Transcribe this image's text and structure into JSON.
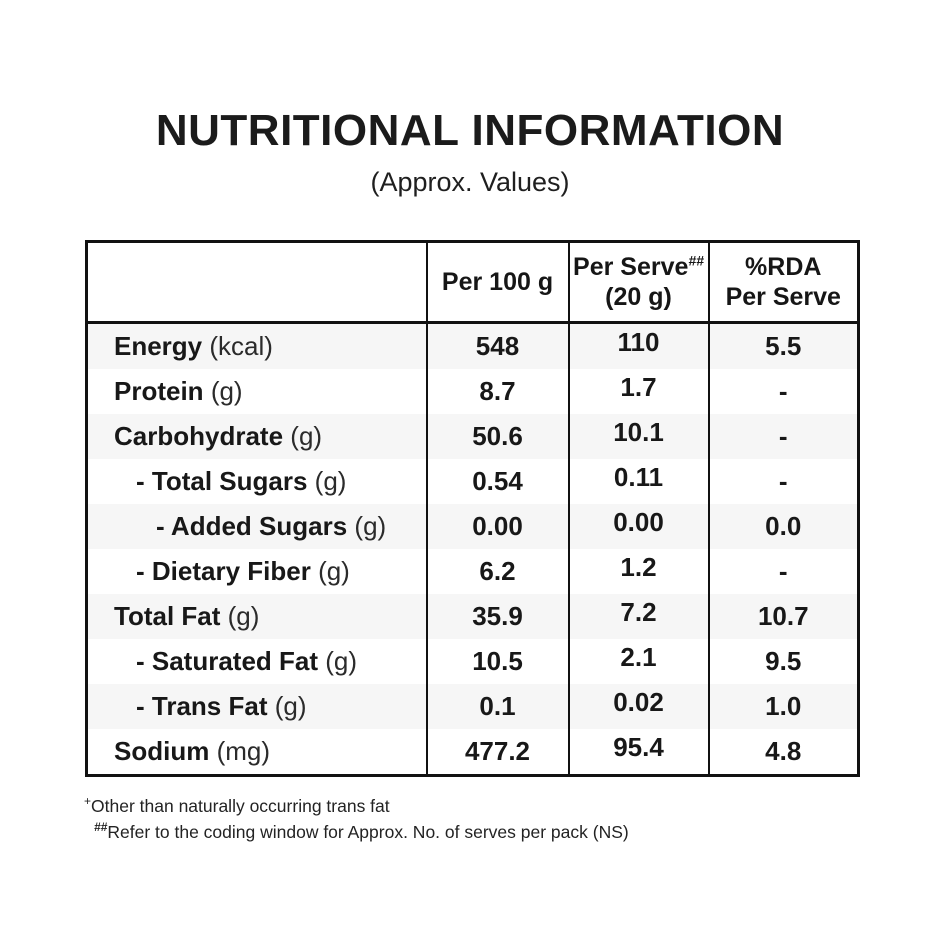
{
  "page": {
    "title": "NUTRITIONAL INFORMATION",
    "subtitle": "(Approx. Values)"
  },
  "table": {
    "stripe_color": "#f6f6f6",
    "border_color": "#111111",
    "columns": [
      {
        "label": ""
      },
      {
        "label": "Per 100 g"
      },
      {
        "label": "Per Serve",
        "sup": "##",
        "sub_label": "(20 g)"
      },
      {
        "label": "%RDA",
        "line2": "Per Serve"
      }
    ],
    "rows": [
      {
        "name": "Energy",
        "unit": "(kcal)",
        "indent": 0,
        "per100": "548",
        "perServe": "110",
        "rda": "5.5"
      },
      {
        "name": "Protein",
        "unit": "(g)",
        "indent": 0,
        "per100": "8.7",
        "perServe": "1.7",
        "rda": "-"
      },
      {
        "name": "Carbohydrate",
        "unit": "(g)",
        "indent": 0,
        "per100": "50.6",
        "perServe": "10.1",
        "rda": "-"
      },
      {
        "name": "- Total Sugars",
        "unit": "(g)",
        "indent": 1,
        "per100": "0.54",
        "perServe": "0.11",
        "rda": "-"
      },
      {
        "name": "- Added Sugars",
        "unit": "(g)",
        "indent": 2,
        "per100": "0.00",
        "perServe": "0.00",
        "rda": "0.0"
      },
      {
        "name": "- Dietary Fiber",
        "unit": "(g)",
        "indent": 1,
        "per100": "6.2",
        "perServe": "1.2",
        "rda": "-"
      },
      {
        "name": "Total Fat",
        "unit": "(g)",
        "indent": 0,
        "per100": "35.9",
        "perServe": "7.2",
        "rda": "10.7"
      },
      {
        "name": "- Saturated Fat",
        "unit": "(g)",
        "indent": 1,
        "per100": "10.5",
        "perServe": "2.1",
        "rda": "9.5"
      },
      {
        "name": "- Trans Fat",
        "unit": "(g)",
        "indent": 1,
        "per100": "0.1",
        "perServe": "0.02",
        "rda": "1.0"
      },
      {
        "name": "Sodium",
        "unit": "(mg)",
        "indent": 0,
        "per100": "477.2",
        "perServe": "95.4",
        "rda": "4.8"
      }
    ]
  },
  "footnotes": [
    {
      "sup": "+",
      "text": "Other than naturally occurring trans fat"
    },
    {
      "sup": "##",
      "text": "Refer to the coding window for Approx. No. of serves per pack (NS)"
    }
  ]
}
